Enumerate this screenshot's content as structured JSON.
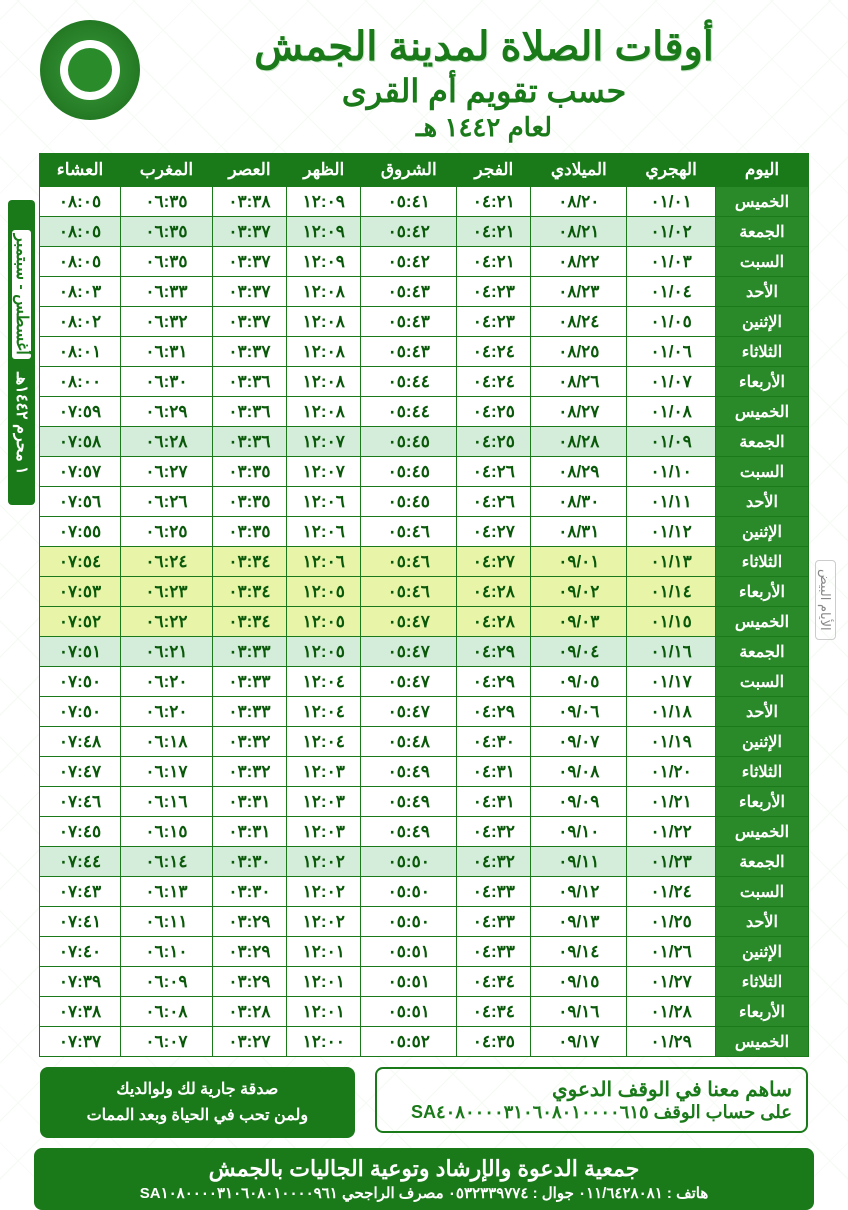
{
  "header": {
    "title1": "أوقات الصلاة لمدينة الجمش",
    "title2": "حسب تقويم أم القرى",
    "title3": "لعام ١٤٤٢ هـ"
  },
  "sideLabels": {
    "monthHijri": "١ محرم ١٤٤٢هـ",
    "monthGreg": "أغسطس - سبتمبر",
    "whiteDays": "الأيام البيض"
  },
  "columns": [
    "اليوم",
    "الهجري",
    "الميلادي",
    "الفجر",
    "الشروق",
    "الظهر",
    "العصر",
    "المغرب",
    "العشاء"
  ],
  "rows": [
    {
      "day": "الخميس",
      "h": "٠١/٠١",
      "g": "٠٨/٢٠",
      "fajr": "٠٤:٢١",
      "sun": "٠٥:٤١",
      "dh": "١٢:٠٩",
      "asr": "٠٣:٣٨",
      "mg": "٠٦:٣٥",
      "isha": "٠٨:٠٥",
      "cls": ""
    },
    {
      "day": "الجمعة",
      "h": "٠١/٠٢",
      "g": "٠٨/٢١",
      "fajr": "٠٤:٢١",
      "sun": "٠٥:٤٢",
      "dh": "١٢:٠٩",
      "asr": "٠٣:٣٧",
      "mg": "٠٦:٣٥",
      "isha": "٠٨:٠٥",
      "cls": "friday"
    },
    {
      "day": "السبت",
      "h": "٠١/٠٣",
      "g": "٠٨/٢٢",
      "fajr": "٠٤:٢١",
      "sun": "٠٥:٤٢",
      "dh": "١٢:٠٩",
      "asr": "٠٣:٣٧",
      "mg": "٠٦:٣٥",
      "isha": "٠٨:٠٥",
      "cls": ""
    },
    {
      "day": "الأحد",
      "h": "٠١/٠٤",
      "g": "٠٨/٢٣",
      "fajr": "٠٤:٢٣",
      "sun": "٠٥:٤٣",
      "dh": "١٢:٠٨",
      "asr": "٠٣:٣٧",
      "mg": "٠٦:٣٣",
      "isha": "٠٨:٠٣",
      "cls": ""
    },
    {
      "day": "الإثنين",
      "h": "٠١/٠٥",
      "g": "٠٨/٢٤",
      "fajr": "٠٤:٢٣",
      "sun": "٠٥:٤٣",
      "dh": "١٢:٠٨",
      "asr": "٠٣:٣٧",
      "mg": "٠٦:٣٢",
      "isha": "٠٨:٠٢",
      "cls": ""
    },
    {
      "day": "الثلاثاء",
      "h": "٠١/٠٦",
      "g": "٠٨/٢٥",
      "fajr": "٠٤:٢٤",
      "sun": "٠٥:٤٣",
      "dh": "١٢:٠٨",
      "asr": "٠٣:٣٧",
      "mg": "٠٦:٣١",
      "isha": "٠٨:٠١",
      "cls": ""
    },
    {
      "day": "الأربعاء",
      "h": "٠١/٠٧",
      "g": "٠٨/٢٦",
      "fajr": "٠٤:٢٤",
      "sun": "٠٥:٤٤",
      "dh": "١٢:٠٨",
      "asr": "٠٣:٣٦",
      "mg": "٠٦:٣٠",
      "isha": "٠٨:٠٠",
      "cls": ""
    },
    {
      "day": "الخميس",
      "h": "٠١/٠٨",
      "g": "٠٨/٢٧",
      "fajr": "٠٤:٢٥",
      "sun": "٠٥:٤٤",
      "dh": "١٢:٠٨",
      "asr": "٠٣:٣٦",
      "mg": "٠٦:٢٩",
      "isha": "٠٧:٥٩",
      "cls": ""
    },
    {
      "day": "الجمعة",
      "h": "٠١/٠٩",
      "g": "٠٨/٢٨",
      "fajr": "٠٤:٢٥",
      "sun": "٠٥:٤٥",
      "dh": "١٢:٠٧",
      "asr": "٠٣:٣٦",
      "mg": "٠٦:٢٨",
      "isha": "٠٧:٥٨",
      "cls": "friday"
    },
    {
      "day": "السبت",
      "h": "٠١/١٠",
      "g": "٠٨/٢٩",
      "fajr": "٠٤:٢٦",
      "sun": "٠٥:٤٥",
      "dh": "١٢:٠٧",
      "asr": "٠٣:٣٥",
      "mg": "٠٦:٢٧",
      "isha": "٠٧:٥٧",
      "cls": ""
    },
    {
      "day": "الأحد",
      "h": "٠١/١١",
      "g": "٠٨/٣٠",
      "fajr": "٠٤:٢٦",
      "sun": "٠٥:٤٥",
      "dh": "١٢:٠٦",
      "asr": "٠٣:٣٥",
      "mg": "٠٦:٢٦",
      "isha": "٠٧:٥٦",
      "cls": ""
    },
    {
      "day": "الإثنين",
      "h": "٠١/١٢",
      "g": "٠٨/٣١",
      "fajr": "٠٤:٢٧",
      "sun": "٠٥:٤٦",
      "dh": "١٢:٠٦",
      "asr": "٠٣:٣٥",
      "mg": "٠٦:٢٥",
      "isha": "٠٧:٥٥",
      "cls": ""
    },
    {
      "day": "الثلاثاء",
      "h": "٠١/١٣",
      "g": "٠٩/٠١",
      "fajr": "٠٤:٢٧",
      "sun": "٠٥:٤٦",
      "dh": "١٢:٠٦",
      "asr": "٠٣:٣٤",
      "mg": "٠٦:٢٤",
      "isha": "٠٧:٥٤",
      "cls": "white-days"
    },
    {
      "day": "الأربعاء",
      "h": "٠١/١٤",
      "g": "٠٩/٠٢",
      "fajr": "٠٤:٢٨",
      "sun": "٠٥:٤٦",
      "dh": "١٢:٠٥",
      "asr": "٠٣:٣٤",
      "mg": "٠٦:٢٣",
      "isha": "٠٧:٥٣",
      "cls": "white-days"
    },
    {
      "day": "الخميس",
      "h": "٠١/١٥",
      "g": "٠٩/٠٣",
      "fajr": "٠٤:٢٨",
      "sun": "٠٥:٤٧",
      "dh": "١٢:٠٥",
      "asr": "٠٣:٣٤",
      "mg": "٠٦:٢٢",
      "isha": "٠٧:٥٢",
      "cls": "white-days"
    },
    {
      "day": "الجمعة",
      "h": "٠١/١٦",
      "g": "٠٩/٠٤",
      "fajr": "٠٤:٢٩",
      "sun": "٠٥:٤٧",
      "dh": "١٢:٠٥",
      "asr": "٠٣:٣٣",
      "mg": "٠٦:٢١",
      "isha": "٠٧:٥١",
      "cls": "friday"
    },
    {
      "day": "السبت",
      "h": "٠١/١٧",
      "g": "٠٩/٠٥",
      "fajr": "٠٤:٢٩",
      "sun": "٠٥:٤٧",
      "dh": "١٢:٠٤",
      "asr": "٠٣:٣٣",
      "mg": "٠٦:٢٠",
      "isha": "٠٧:٥٠",
      "cls": ""
    },
    {
      "day": "الأحد",
      "h": "٠١/١٨",
      "g": "٠٩/٠٦",
      "fajr": "٠٤:٢٩",
      "sun": "٠٥:٤٧",
      "dh": "١٢:٠٤",
      "asr": "٠٣:٣٣",
      "mg": "٠٦:٢٠",
      "isha": "٠٧:٥٠",
      "cls": ""
    },
    {
      "day": "الإثنين",
      "h": "٠١/١٩",
      "g": "٠٩/٠٧",
      "fajr": "٠٤:٣٠",
      "sun": "٠٥:٤٨",
      "dh": "١٢:٠٤",
      "asr": "٠٣:٣٢",
      "mg": "٠٦:١٨",
      "isha": "٠٧:٤٨",
      "cls": ""
    },
    {
      "day": "الثلاثاء",
      "h": "٠١/٢٠",
      "g": "٠٩/٠٨",
      "fajr": "٠٤:٣١",
      "sun": "٠٥:٤٩",
      "dh": "١٢:٠٣",
      "asr": "٠٣:٣٢",
      "mg": "٠٦:١٧",
      "isha": "٠٧:٤٧",
      "cls": ""
    },
    {
      "day": "الأربعاء",
      "h": "٠١/٢١",
      "g": "٠٩/٠٩",
      "fajr": "٠٤:٣١",
      "sun": "٠٥:٤٩",
      "dh": "١٢:٠٣",
      "asr": "٠٣:٣١",
      "mg": "٠٦:١٦",
      "isha": "٠٧:٤٦",
      "cls": ""
    },
    {
      "day": "الخميس",
      "h": "٠١/٢٢",
      "g": "٠٩/١٠",
      "fajr": "٠٤:٣٢",
      "sun": "٠٥:٤٩",
      "dh": "١٢:٠٣",
      "asr": "٠٣:٣١",
      "mg": "٠٦:١٥",
      "isha": "٠٧:٤٥",
      "cls": ""
    },
    {
      "day": "الجمعة",
      "h": "٠١/٢٣",
      "g": "٠٩/١١",
      "fajr": "٠٤:٣٢",
      "sun": "٠٥:٥٠",
      "dh": "١٢:٠٢",
      "asr": "٠٣:٣٠",
      "mg": "٠٦:١٤",
      "isha": "٠٧:٤٤",
      "cls": "friday"
    },
    {
      "day": "السبت",
      "h": "٠١/٢٤",
      "g": "٠٩/١٢",
      "fajr": "٠٤:٣٣",
      "sun": "٠٥:٥٠",
      "dh": "١٢:٠٢",
      "asr": "٠٣:٣٠",
      "mg": "٠٦:١٣",
      "isha": "٠٧:٤٣",
      "cls": ""
    },
    {
      "day": "الأحد",
      "h": "٠١/٢٥",
      "g": "٠٩/١٣",
      "fajr": "٠٤:٣٣",
      "sun": "٠٥:٥٠",
      "dh": "١٢:٠٢",
      "asr": "٠٣:٢٩",
      "mg": "٠٦:١١",
      "isha": "٠٧:٤١",
      "cls": ""
    },
    {
      "day": "الإثنين",
      "h": "٠١/٢٦",
      "g": "٠٩/١٤",
      "fajr": "٠٤:٣٣",
      "sun": "٠٥:٥١",
      "dh": "١٢:٠١",
      "asr": "٠٣:٢٩",
      "mg": "٠٦:١٠",
      "isha": "٠٧:٤٠",
      "cls": ""
    },
    {
      "day": "الثلاثاء",
      "h": "٠١/٢٧",
      "g": "٠٩/١٥",
      "fajr": "٠٤:٣٤",
      "sun": "٠٥:٥١",
      "dh": "١٢:٠١",
      "asr": "٠٣:٢٩",
      "mg": "٠٦:٠٩",
      "isha": "٠٧:٣٩",
      "cls": ""
    },
    {
      "day": "الأربعاء",
      "h": "٠١/٢٨",
      "g": "٠٩/١٦",
      "fajr": "٠٤:٣٤",
      "sun": "٠٥:٥١",
      "dh": "١٢:٠١",
      "asr": "٠٣:٢٨",
      "mg": "٠٦:٠٨",
      "isha": "٠٧:٣٨",
      "cls": ""
    },
    {
      "day": "الخميس",
      "h": "٠١/٢٩",
      "g": "٠٩/١٧",
      "fajr": "٠٤:٣٥",
      "sun": "٠٥:٥٢",
      "dh": "١٢:٠٠",
      "asr": "٠٣:٢٧",
      "mg": "٠٦:٠٧",
      "isha": "٠٧:٣٧",
      "cls": ""
    }
  ],
  "footer": {
    "waqf1": "ساهم معنا في الوقف الدعوي",
    "waqf2": "على حساب الوقف SA٤٠٨٠٠٠٠٣١٠٦٠٨٠١٠٠٠٠٦١٥",
    "motto1": "صدقة جارية لك ولوالديك",
    "motto2": "ولمن تحب في الحياة وبعد الممات",
    "org1": "جمعية الدعوة والإرشاد وتوعية الجاليات بالجمش",
    "org2": "هاتف : ٠١١/٦٤٢٨٠٨١ جوال : ٠٥٣٢٣٣٩٧٧٤ مصرف الراجحي SA١٠٨٠٠٠٠٣١٠٦٠٨٠١٠٠٠٠٩٦١"
  },
  "style": {
    "primary": "#1a7a1a",
    "friday_bg": "#d4edda",
    "whitedays_bg": "#e8f5a8"
  }
}
